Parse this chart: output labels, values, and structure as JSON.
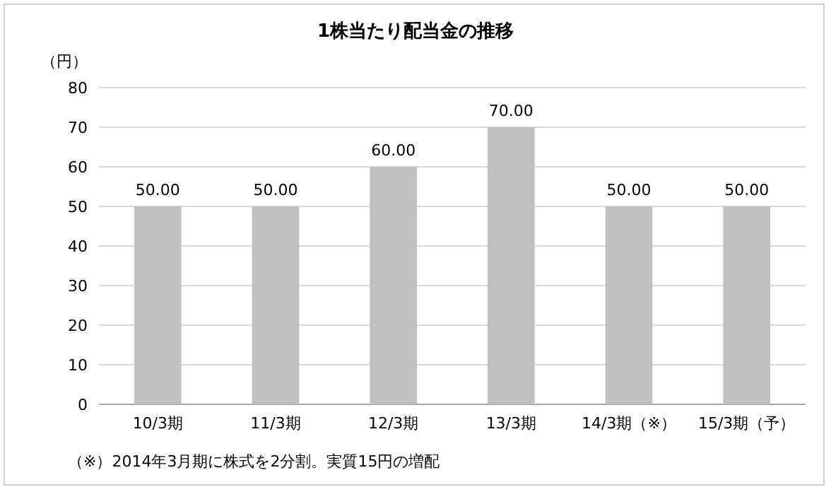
{
  "chart_data": {
    "type": "bar",
    "title": "1株当たり配当金の推移",
    "ylabel": "（円）",
    "categories": [
      "10/3期",
      "11/3期",
      "12/3期",
      "13/3期",
      "14/3期（※）",
      "15/3期（予）"
    ],
    "values": [
      50,
      50,
      60,
      70,
      50,
      50
    ],
    "color": "#c0c0c0",
    "value_labels": [
      "50.00",
      "50.00",
      "60.00",
      "70.00",
      "50.00",
      "50.00"
    ],
    "ylim": [
      0,
      80
    ],
    "yticks": [
      0,
      10,
      20,
      30,
      40,
      50,
      60,
      70,
      80
    ],
    "grid": "y",
    "annotations": [
      "（※）2014年3月期に株式を2分割。実質15円の増配"
    ]
  }
}
